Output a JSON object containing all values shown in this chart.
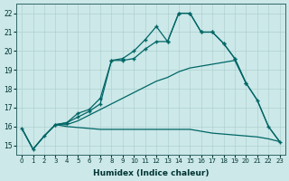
{
  "xlabel": "Humidex (Indice chaleur)",
  "background_color": "#cce8e8",
  "grid_color": "#aacccc",
  "line_color": "#006666",
  "xlim": [
    -0.5,
    23.5
  ],
  "ylim": [
    14.5,
    22.5
  ],
  "xticks": [
    0,
    1,
    2,
    3,
    4,
    5,
    6,
    7,
    8,
    9,
    10,
    11,
    12,
    13,
    14,
    15,
    16,
    17,
    18,
    19,
    20,
    21,
    22,
    23
  ],
  "yticks": [
    15,
    16,
    17,
    18,
    19,
    20,
    21,
    22
  ],
  "line1_x": [
    0,
    1,
    2,
    3,
    4,
    5,
    6,
    7,
    8,
    9,
    10,
    11,
    12,
    13,
    14,
    15,
    16,
    17,
    18,
    19,
    20,
    21,
    22,
    23
  ],
  "line1_y": [
    15.9,
    14.8,
    15.5,
    16.1,
    16.2,
    16.7,
    16.9,
    17.5,
    19.5,
    19.6,
    20.0,
    20.6,
    21.3,
    20.5,
    22.0,
    22.0,
    21.0,
    21.0,
    20.4,
    19.6,
    18.3,
    17.4,
    16.0,
    15.2
  ],
  "line2_x": [
    3,
    4,
    5,
    6,
    7,
    8,
    9,
    10,
    11,
    12,
    13,
    14,
    15,
    16,
    17,
    18,
    19,
    20
  ],
  "line2_y": [
    16.1,
    16.2,
    16.5,
    16.8,
    17.2,
    19.5,
    19.5,
    19.6,
    20.1,
    20.5,
    20.5,
    22.0,
    22.0,
    21.0,
    21.0,
    20.4,
    19.6,
    18.3
  ],
  "line3_x": [
    0,
    1,
    2,
    3,
    4,
    5,
    6,
    7,
    8,
    9,
    10,
    11,
    12,
    13,
    14,
    15,
    16,
    17,
    18,
    19,
    20,
    21,
    22,
    23
  ],
  "line3_y": [
    15.9,
    14.8,
    15.5,
    16.1,
    16.1,
    16.3,
    16.6,
    16.9,
    17.2,
    17.5,
    17.8,
    18.1,
    18.4,
    18.6,
    18.9,
    19.1,
    19.2,
    19.3,
    19.4,
    19.5,
    18.3,
    17.4,
    16.0,
    15.2
  ],
  "line4_x": [
    0,
    1,
    2,
    3,
    4,
    5,
    6,
    7,
    8,
    9,
    10,
    11,
    12,
    13,
    14,
    15,
    16,
    17,
    18,
    19,
    20,
    21,
    22,
    23
  ],
  "line4_y": [
    15.9,
    14.8,
    15.5,
    16.1,
    16.0,
    15.95,
    15.9,
    15.85,
    15.85,
    15.85,
    15.85,
    15.85,
    15.85,
    15.85,
    15.85,
    15.85,
    15.75,
    15.65,
    15.6,
    15.55,
    15.5,
    15.45,
    15.35,
    15.2
  ]
}
